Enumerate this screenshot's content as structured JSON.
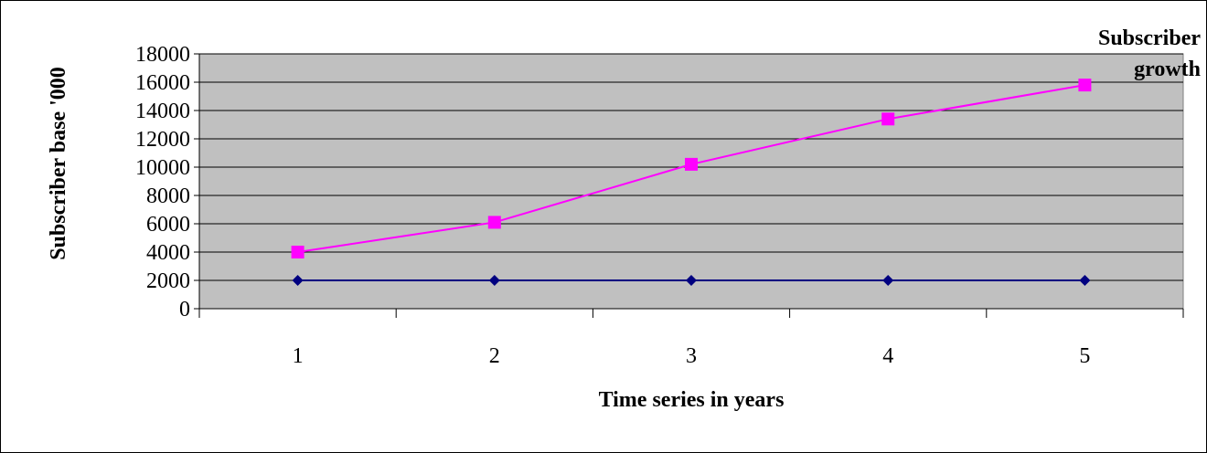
{
  "chart_data": {
    "type": "line",
    "title": "",
    "xlabel": "Time series in years",
    "ylabel": "Subscriber base '000",
    "categories": [
      "1",
      "2",
      "3",
      "4",
      "5"
    ],
    "ylim": [
      0,
      18000
    ],
    "yticks": [
      0,
      2000,
      4000,
      6000,
      8000,
      10000,
      12000,
      14000,
      16000,
      18000
    ],
    "grid": true,
    "legend_position": "top-right",
    "plot_background": "#c0c0c0",
    "series": [
      {
        "name": "",
        "values": [
          2000,
          2000,
          2000,
          2000,
          2000
        ],
        "color": "#000080",
        "marker": "diamond"
      },
      {
        "name": "Subscriber growth",
        "values": [
          4000,
          6100,
          10200,
          13400,
          15800
        ],
        "color": "#ff00ff",
        "marker": "square"
      }
    ]
  }
}
